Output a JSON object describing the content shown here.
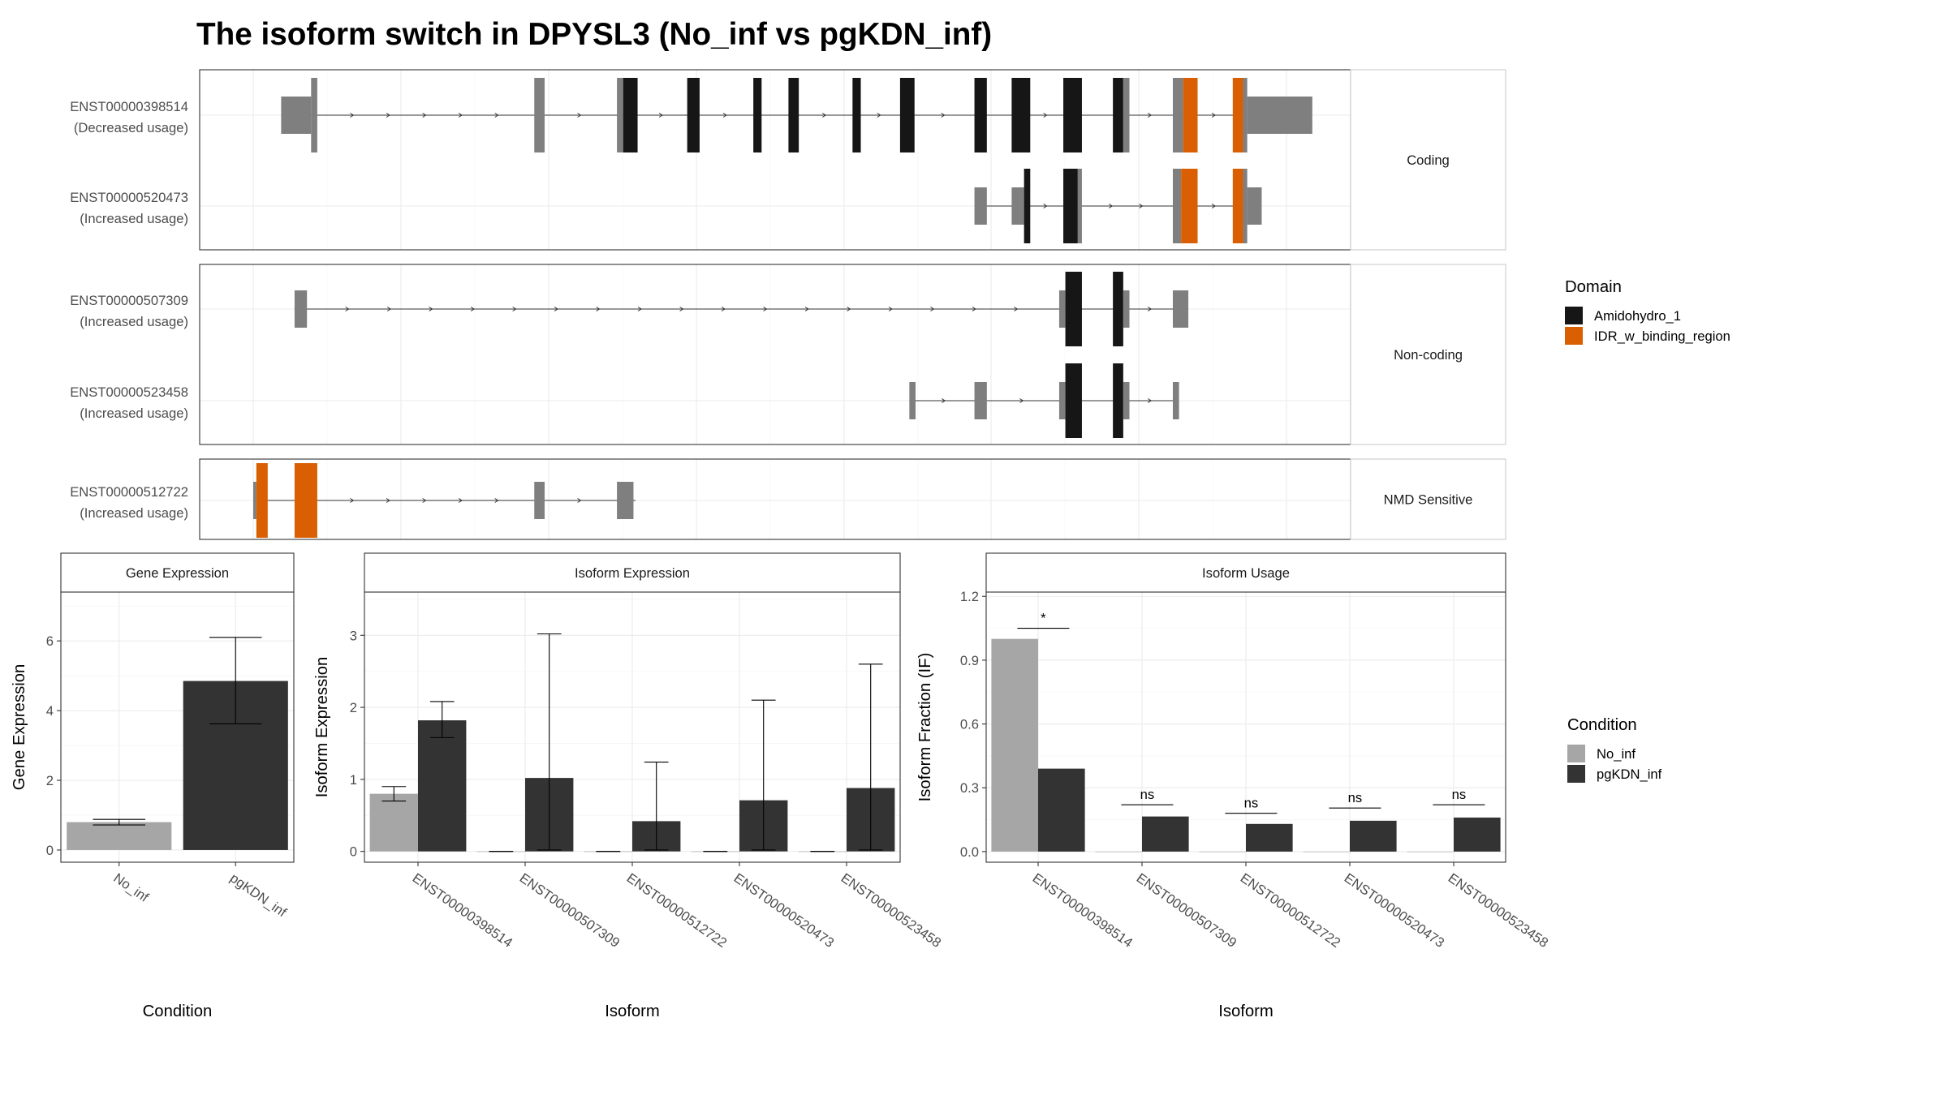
{
  "title": "The isoform switch in DPYSL3 (No_inf vs pgKDN_inf)",
  "colors": {
    "utr": "#7f7f7f",
    "cds": "#7f7f7f",
    "Amidohydro_1": "#161616",
    "IDR_w_binding_region": "#d95f02",
    "No_inf": "#a6a6a6",
    "pgKDN_inf": "#333333"
  },
  "domain_legend": {
    "title": "Domain",
    "items": [
      {
        "label": "Amidohydro_1",
        "color": "#161616"
      },
      {
        "label": "IDR_w_binding_region",
        "color": "#d95f02"
      }
    ]
  },
  "condition_legend": {
    "title": "Condition",
    "items": [
      {
        "label": "No_inf",
        "color": "#a6a6a6"
      },
      {
        "label": "pgKDN_inf",
        "color": "#333333"
      }
    ]
  },
  "chart_data": [
    {
      "type": "gene_structure",
      "coordinate_range": [
        0,
        1000
      ],
      "groups": [
        {
          "label": "Coding",
          "isoforms": [
            {
              "id": "ENST00000398514",
              "usage": "(Decreased usage)",
              "span": [
                27,
                995
              ],
              "exons": [
                {
                  "start": 27,
                  "end": 56,
                  "type": "utr"
                },
                {
                  "start": 56,
                  "end": 62,
                  "type": "cds"
                },
                {
                  "start": 272,
                  "end": 282,
                  "type": "cds"
                },
                {
                  "start": 352,
                  "end": 358,
                  "type": "cds"
                },
                {
                  "start": 358,
                  "end": 372,
                  "type": "Amidohydro_1"
                },
                {
                  "start": 420,
                  "end": 432,
                  "type": "Amidohydro_1"
                },
                {
                  "start": 484,
                  "end": 492,
                  "type": "Amidohydro_1"
                },
                {
                  "start": 518,
                  "end": 528,
                  "type": "Amidohydro_1"
                },
                {
                  "start": 580,
                  "end": 588,
                  "type": "Amidohydro_1"
                },
                {
                  "start": 626,
                  "end": 640,
                  "type": "Amidohydro_1"
                },
                {
                  "start": 698,
                  "end": 710,
                  "type": "Amidohydro_1"
                },
                {
                  "start": 734,
                  "end": 752,
                  "type": "Amidohydro_1"
                },
                {
                  "start": 784,
                  "end": 802,
                  "type": "Amidohydro_1"
                },
                {
                  "start": 832,
                  "end": 842,
                  "type": "Amidohydro_1"
                },
                {
                  "start": 842,
                  "end": 848,
                  "type": "cds"
                },
                {
                  "start": 890,
                  "end": 900,
                  "type": "cds"
                },
                {
                  "start": 900,
                  "end": 914,
                  "type": "IDR_w_binding_region"
                },
                {
                  "start": 948,
                  "end": 958,
                  "type": "IDR_w_binding_region"
                },
                {
                  "start": 958,
                  "end": 962,
                  "type": "cds"
                },
                {
                  "start": 962,
                  "end": 1025,
                  "type": "utr"
                }
              ]
            },
            {
              "id": "ENST00000520473",
              "usage": "(Increased usage)",
              "span": [
                698,
                970
              ],
              "exons": [
                {
                  "start": 698,
                  "end": 710,
                  "type": "utr"
                },
                {
                  "start": 734,
                  "end": 746,
                  "type": "utr"
                },
                {
                  "start": 746,
                  "end": 752,
                  "type": "Amidohydro_1"
                },
                {
                  "start": 784,
                  "end": 798,
                  "type": "Amidohydro_1"
                },
                {
                  "start": 798,
                  "end": 802,
                  "type": "cds"
                },
                {
                  "start": 890,
                  "end": 898,
                  "type": "cds"
                },
                {
                  "start": 898,
                  "end": 914,
                  "type": "IDR_w_binding_region"
                },
                {
                  "start": 948,
                  "end": 958,
                  "type": "IDR_w_binding_region"
                },
                {
                  "start": 958,
                  "end": 962,
                  "type": "cds"
                },
                {
                  "start": 962,
                  "end": 976,
                  "type": "utr"
                }
              ]
            }
          ]
        },
        {
          "label": "Non-coding",
          "isoforms": [
            {
              "id": "ENST00000507309",
              "usage": "(Increased usage)",
              "span": [
                40,
                905
              ],
              "exons": [
                {
                  "start": 40,
                  "end": 52,
                  "type": "utr"
                },
                {
                  "start": 780,
                  "end": 786,
                  "type": "utr"
                },
                {
                  "start": 786,
                  "end": 802,
                  "type": "Amidohydro_1"
                },
                {
                  "start": 832,
                  "end": 842,
                  "type": "Amidohydro_1"
                },
                {
                  "start": 842,
                  "end": 848,
                  "type": "utr"
                },
                {
                  "start": 890,
                  "end": 905,
                  "type": "utr"
                }
              ]
            },
            {
              "id": "ENST00000523458",
              "usage": "(Increased usage)",
              "span": [
                635,
                895
              ],
              "exons": [
                {
                  "start": 635,
                  "end": 641,
                  "type": "utr"
                },
                {
                  "start": 698,
                  "end": 710,
                  "type": "utr"
                },
                {
                  "start": 780,
                  "end": 786,
                  "type": "utr"
                },
                {
                  "start": 786,
                  "end": 802,
                  "type": "Amidohydro_1"
                },
                {
                  "start": 832,
                  "end": 842,
                  "type": "Amidohydro_1"
                },
                {
                  "start": 842,
                  "end": 848,
                  "type": "utr"
                },
                {
                  "start": 890,
                  "end": 896,
                  "type": "utr"
                }
              ]
            }
          ]
        },
        {
          "label": "NMD Sensitive",
          "isoforms": [
            {
              "id": "ENST00000512722",
              "usage": "(Increased usage)",
              "span": [
                0,
                370
              ],
              "exons": [
                {
                  "start": 0,
                  "end": 3,
                  "type": "utr"
                },
                {
                  "start": 3,
                  "end": 14,
                  "type": "IDR_w_binding_region"
                },
                {
                  "start": 40,
                  "end": 62,
                  "type": "IDR_w_binding_region"
                },
                {
                  "start": 272,
                  "end": 282,
                  "type": "utr"
                },
                {
                  "start": 352,
                  "end": 368,
                  "type": "utr"
                }
              ]
            }
          ]
        }
      ]
    },
    {
      "type": "bar",
      "title": "Gene Expression",
      "xlabel": "Condition",
      "ylabel": "Gene Expression",
      "categories": [
        "No_inf",
        "pgKDN_inf"
      ],
      "values": [
        0.8,
        4.85
      ],
      "errors": [
        [
          0.72,
          0.88
        ],
        [
          3.62,
          6.1
        ]
      ],
      "ylim": [
        -0.35,
        7.4
      ],
      "yticks": [
        0,
        2,
        4,
        6
      ],
      "grid": true
    },
    {
      "type": "bar",
      "title": "Isoform Expression",
      "xlabel": "Isoform",
      "ylabel": "Isoform Expression",
      "categories": [
        "ENST00000398514",
        "ENST00000507309",
        "ENST00000512722",
        "ENST00000520473",
        "ENST00000523458"
      ],
      "series": [
        {
          "name": "No_inf",
          "values": [
            0.8,
            0,
            0,
            0,
            0
          ],
          "errors": [
            [
              0.7,
              0.9
            ],
            [
              0,
              0
            ],
            [
              0,
              0
            ],
            [
              0,
              0
            ],
            [
              0,
              0
            ]
          ]
        },
        {
          "name": "pgKDN_inf",
          "values": [
            1.82,
            1.02,
            0.42,
            0.71,
            0.88
          ],
          "errors": [
            [
              1.58,
              2.08
            ],
            [
              0.02,
              3.02
            ],
            [
              0.02,
              1.24
            ],
            [
              0.02,
              2.1
            ],
            [
              0.02,
              2.6
            ]
          ]
        }
      ],
      "ylim": [
        -0.15,
        3.6
      ],
      "yticks": [
        0,
        1,
        2,
        3
      ],
      "grid": true
    },
    {
      "type": "bar",
      "title": "Isoform Usage",
      "xlabel": "Isoform",
      "ylabel": "Isoform Fraction (IF)",
      "categories": [
        "ENST00000398514",
        "ENST00000507309",
        "ENST00000512722",
        "ENST00000520473",
        "ENST00000523458"
      ],
      "series": [
        {
          "name": "No_inf",
          "values": [
            1.0,
            0,
            0,
            0,
            0
          ]
        },
        {
          "name": "pgKDN_inf",
          "values": [
            0.39,
            0.165,
            0.13,
            0.145,
            0.16
          ]
        }
      ],
      "significance": [
        "*",
        "ns",
        "ns",
        "ns",
        "ns"
      ],
      "significance_y": [
        1.05,
        0.22,
        0.18,
        0.205,
        0.22
      ],
      "ylim": [
        -0.05,
        1.22
      ],
      "yticks": [
        0.0,
        0.3,
        0.6,
        0.9,
        1.2
      ],
      "ytick_labels": [
        "0.0",
        "0.3",
        "0.6",
        "0.9",
        "1.2"
      ],
      "grid": true
    }
  ]
}
